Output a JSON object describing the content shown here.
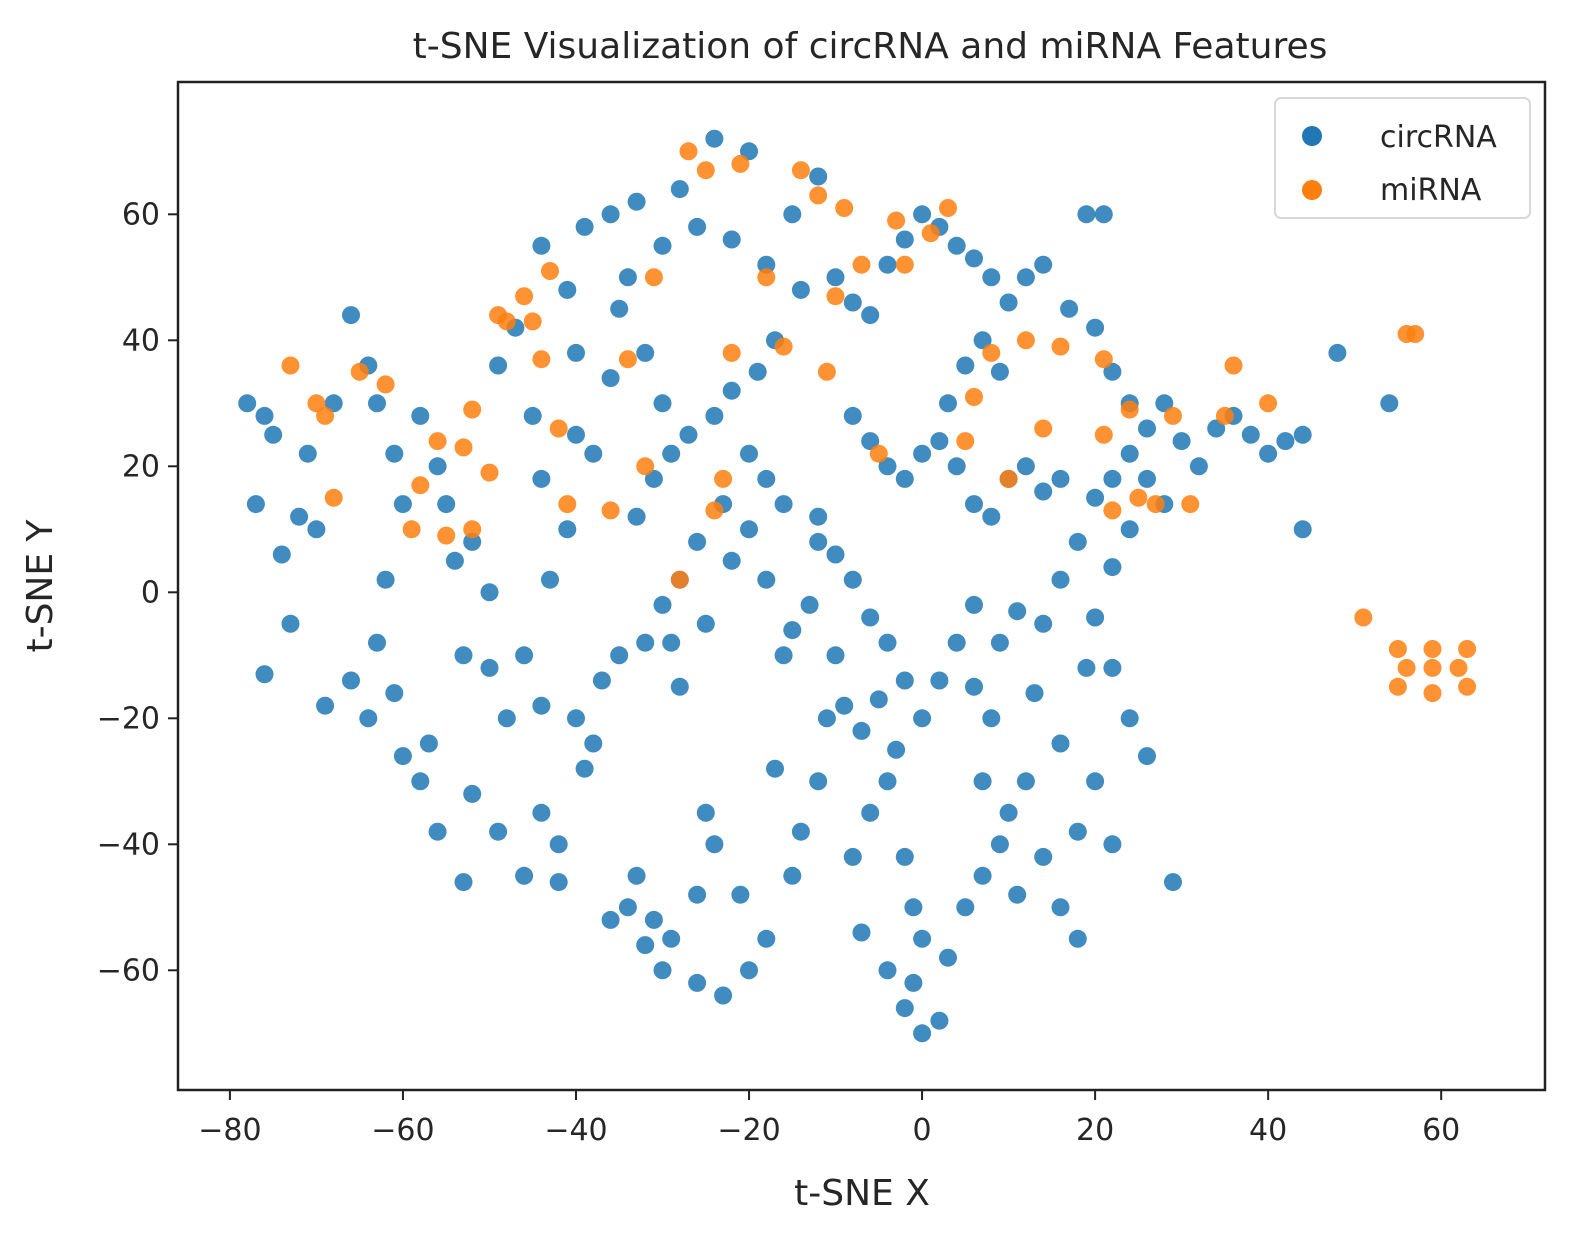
{
  "chart_data": {
    "type": "scatter",
    "title": "t-SNE Visualization of circRNA and miRNA Features",
    "xlabel": "t-SNE X",
    "ylabel": "t-SNE Y",
    "xlim": [
      -86,
      72
    ],
    "ylim": [
      -79,
      81
    ],
    "xticks": [
      -80,
      -60,
      -40,
      -20,
      0,
      20,
      40,
      60
    ],
    "yticks": [
      -60,
      -40,
      -20,
      0,
      20,
      40,
      60
    ],
    "tick_labels_x": [
      "−80",
      "−60",
      "−40",
      "−20",
      "0",
      "20",
      "40",
      "60"
    ],
    "tick_labels_y": [
      "−60",
      "−40",
      "−20",
      "0",
      "20",
      "40",
      "60"
    ],
    "legend_position": "top-right",
    "series": [
      {
        "name": "circRNA",
        "color": "#1f77b4",
        "points": [
          [
            -78,
            30
          ],
          [
            -76,
            28
          ],
          [
            -75,
            25
          ],
          [
            -77,
            14
          ],
          [
            -72,
            12
          ],
          [
            -70,
            10
          ],
          [
            -74,
            6
          ],
          [
            -76,
            -13
          ],
          [
            -73,
            -5
          ],
          [
            -69,
            -18
          ],
          [
            -66,
            44
          ],
          [
            -64,
            36
          ],
          [
            -63,
            30
          ],
          [
            -61,
            22
          ],
          [
            -60,
            14
          ],
          [
            -62,
            2
          ],
          [
            -63,
            -8
          ],
          [
            -61,
            -16
          ],
          [
            -60,
            -26
          ],
          [
            -57,
            -24
          ],
          [
            -55,
            14
          ],
          [
            -54,
            5
          ],
          [
            -53,
            -10
          ],
          [
            -50,
            -12
          ],
          [
            -48,
            -20
          ],
          [
            -52,
            -32
          ],
          [
            -49,
            -38
          ],
          [
            -46,
            -45
          ],
          [
            -44,
            -35
          ],
          [
            -42,
            -40
          ],
          [
            -49,
            36
          ],
          [
            -47,
            42
          ],
          [
            -45,
            28
          ],
          [
            -44,
            18
          ],
          [
            -41,
            10
          ],
          [
            -40,
            25
          ],
          [
            -38,
            22
          ],
          [
            -43,
            2
          ],
          [
            -40,
            -20
          ],
          [
            -38,
            -24
          ],
          [
            -35,
            -10
          ],
          [
            -34,
            -50
          ],
          [
            -32,
            -56
          ],
          [
            -30,
            -60
          ],
          [
            -33,
            -45
          ],
          [
            -31,
            -52
          ],
          [
            -36,
            -52
          ],
          [
            -29,
            -55
          ],
          [
            -26,
            -62
          ],
          [
            -23,
            -64
          ],
          [
            -20,
            -60
          ],
          [
            -18,
            -55
          ],
          [
            -24,
            -40
          ],
          [
            -25,
            -35
          ],
          [
            -29,
            -8
          ],
          [
            -28,
            -15
          ],
          [
            -25,
            -5
          ],
          [
            -22,
            5
          ],
          [
            -20,
            10
          ],
          [
            -18,
            2
          ],
          [
            -15,
            -6
          ],
          [
            -13,
            -2
          ],
          [
            -12,
            8
          ],
          [
            -10,
            -10
          ],
          [
            -9,
            -18
          ],
          [
            -7,
            -22
          ],
          [
            -5,
            -17
          ],
          [
            -3,
            -25
          ],
          [
            -6,
            -35
          ],
          [
            -8,
            -42
          ],
          [
            -12,
            -30
          ],
          [
            -14,
            -38
          ],
          [
            -17,
            -28
          ],
          [
            -15,
            -45
          ],
          [
            -4,
            -30
          ],
          [
            -2,
            -42
          ],
          [
            -1,
            -50
          ],
          [
            0,
            -55
          ],
          [
            -2,
            -66
          ],
          [
            0,
            -70
          ],
          [
            2,
            -68
          ],
          [
            -1,
            -62
          ],
          [
            3,
            -58
          ],
          [
            5,
            -50
          ],
          [
            7,
            -45
          ],
          [
            9,
            -40
          ],
          [
            10,
            -35
          ],
          [
            12,
            -30
          ],
          [
            14,
            -42
          ],
          [
            16,
            -50
          ],
          [
            18,
            -55
          ],
          [
            11,
            -48
          ],
          [
            8,
            -20
          ],
          [
            6,
            -15
          ],
          [
            9,
            -8
          ],
          [
            11,
            -3
          ],
          [
            14,
            -5
          ],
          [
            16,
            2
          ],
          [
            18,
            8
          ],
          [
            20,
            15
          ],
          [
            22,
            18
          ],
          [
            24,
            22
          ],
          [
            26,
            26
          ],
          [
            28,
            30
          ],
          [
            30,
            24
          ],
          [
            32,
            20
          ],
          [
            34,
            26
          ],
          [
            36,
            28
          ],
          [
            38,
            25
          ],
          [
            40,
            22
          ],
          [
            42,
            24
          ],
          [
            44,
            10
          ],
          [
            44,
            25
          ],
          [
            29,
            -46
          ],
          [
            48,
            38
          ],
          [
            54,
            30
          ],
          [
            -33,
            62
          ],
          [
            -28,
            64
          ],
          [
            -24,
            72
          ],
          [
            -20,
            70
          ],
          [
            -26,
            58
          ],
          [
            -30,
            55
          ],
          [
            -34,
            50
          ],
          [
            -35,
            45
          ],
          [
            -22,
            56
          ],
          [
            -18,
            52
          ],
          [
            -14,
            48
          ],
          [
            -10,
            50
          ],
          [
            -8,
            46
          ],
          [
            -6,
            44
          ],
          [
            -4,
            52
          ],
          [
            -2,
            56
          ],
          [
            0,
            60
          ],
          [
            2,
            58
          ],
          [
            4,
            55
          ],
          [
            6,
            53
          ],
          [
            8,
            50
          ],
          [
            10,
            46
          ],
          [
            12,
            50
          ],
          [
            14,
            52
          ],
          [
            -12,
            66
          ],
          [
            -15,
            60
          ],
          [
            -17,
            40
          ],
          [
            -19,
            35
          ],
          [
            -22,
            32
          ],
          [
            -24,
            28
          ],
          [
            -27,
            25
          ],
          [
            -29,
            22
          ],
          [
            -31,
            18
          ],
          [
            -33,
            12
          ],
          [
            -8,
            28
          ],
          [
            -6,
            24
          ],
          [
            -4,
            20
          ],
          [
            -2,
            18
          ],
          [
            0,
            22
          ],
          [
            2,
            24
          ],
          [
            4,
            20
          ],
          [
            6,
            14
          ],
          [
            8,
            12
          ],
          [
            10,
            18
          ],
          [
            12,
            20
          ],
          [
            14,
            16
          ],
          [
            16,
            18
          ],
          [
            19,
            60
          ],
          [
            21,
            60
          ],
          [
            17,
            45
          ],
          [
            20,
            42
          ],
          [
            22,
            35
          ],
          [
            24,
            30
          ],
          [
            26,
            18
          ],
          [
            28,
            14
          ],
          [
            24,
            10
          ],
          [
            22,
            4
          ],
          [
            20,
            -4
          ],
          [
            22,
            -12
          ],
          [
            24,
            -20
          ],
          [
            26,
            -26
          ],
          [
            20,
            -30
          ],
          [
            18,
            -38
          ],
          [
            22,
            -40
          ],
          [
            6,
            -2
          ],
          [
            4,
            -8
          ],
          [
            2,
            -14
          ],
          [
            0,
            -20
          ],
          [
            -2,
            -14
          ],
          [
            -4,
            -8
          ],
          [
            -6,
            -4
          ],
          [
            -8,
            2
          ],
          [
            -10,
            6
          ],
          [
            -12,
            12
          ],
          [
            -16,
            14
          ],
          [
            -18,
            18
          ],
          [
            -20,
            22
          ],
          [
            -23,
            14
          ],
          [
            -26,
            8
          ],
          [
            -28,
            2
          ],
          [
            -30,
            -2
          ],
          [
            -32,
            -8
          ],
          [
            -37,
            -14
          ],
          [
            -39,
            -28
          ],
          [
            -42,
            -46
          ],
          [
            -44,
            -18
          ],
          [
            -46,
            -10
          ],
          [
            -50,
            0
          ],
          [
            -52,
            8
          ],
          [
            -56,
            20
          ],
          [
            -58,
            28
          ],
          [
            -68,
            30
          ],
          [
            -71,
            22
          ],
          [
            -66,
            -14
          ],
          [
            -64,
            -20
          ],
          [
            -58,
            -30
          ],
          [
            -56,
            -38
          ],
          [
            -53,
            -46
          ],
          [
            -26,
            -48
          ],
          [
            -21,
            -48
          ],
          [
            -16,
            -10
          ],
          [
            -11,
            -20
          ],
          [
            -7,
            -54
          ],
          [
            -4,
            -60
          ],
          [
            7,
            -30
          ],
          [
            13,
            -16
          ],
          [
            16,
            -24
          ],
          [
            19,
            -12
          ],
          [
            3,
            30
          ],
          [
            5,
            36
          ],
          [
            7,
            40
          ],
          [
            9,
            35
          ],
          [
            -30,
            30
          ],
          [
            -32,
            38
          ],
          [
            -36,
            60
          ],
          [
            -39,
            58
          ],
          [
            -44,
            55
          ],
          [
            -41,
            48
          ],
          [
            -36,
            34
          ],
          [
            -40,
            38
          ]
        ]
      },
      {
        "name": "miRNA",
        "color": "#ff7f0e",
        "points": [
          [
            -73,
            36
          ],
          [
            -70,
            30
          ],
          [
            -69,
            28
          ],
          [
            -68,
            15
          ],
          [
            -65,
            35
          ],
          [
            -62,
            33
          ],
          [
            -59,
            10
          ],
          [
            -58,
            17
          ],
          [
            -56,
            24
          ],
          [
            -55,
            9
          ],
          [
            -53,
            23
          ],
          [
            -52,
            10
          ],
          [
            -52,
            29
          ],
          [
            -50,
            19
          ],
          [
            -49,
            44
          ],
          [
            -48,
            43
          ],
          [
            -46,
            47
          ],
          [
            -45,
            43
          ],
          [
            -44,
            37
          ],
          [
            -43,
            51
          ],
          [
            -42,
            26
          ],
          [
            -41,
            14
          ],
          [
            -36,
            13
          ],
          [
            -34,
            37
          ],
          [
            -32,
            20
          ],
          [
            -31,
            50
          ],
          [
            -28,
            2
          ],
          [
            -27,
            70
          ],
          [
            -25,
            67
          ],
          [
            -24,
            13
          ],
          [
            -23,
            18
          ],
          [
            -22,
            38
          ],
          [
            -21,
            68
          ],
          [
            -18,
            50
          ],
          [
            -16,
            39
          ],
          [
            -14,
            67
          ],
          [
            -12,
            63
          ],
          [
            -11,
            35
          ],
          [
            -10,
            47
          ],
          [
            -9,
            61
          ],
          [
            -7,
            52
          ],
          [
            -5,
            22
          ],
          [
            -3,
            59
          ],
          [
            -2,
            52
          ],
          [
            1,
            57
          ],
          [
            3,
            61
          ],
          [
            5,
            24
          ],
          [
            6,
            31
          ],
          [
            8,
            38
          ],
          [
            10,
            18
          ],
          [
            12,
            40
          ],
          [
            14,
            26
          ],
          [
            16,
            39
          ],
          [
            21,
            37
          ],
          [
            21,
            25
          ],
          [
            22,
            13
          ],
          [
            24,
            29
          ],
          [
            25,
            15
          ],
          [
            27,
            14
          ],
          [
            29,
            28
          ],
          [
            31,
            14
          ],
          [
            35,
            28
          ],
          [
            36,
            36
          ],
          [
            40,
            30
          ],
          [
            51,
            -4
          ],
          [
            56,
            41
          ],
          [
            57,
            41
          ],
          [
            59,
            -12
          ],
          [
            59,
            -9
          ],
          [
            59,
            -16
          ],
          [
            56,
            -12
          ],
          [
            62,
            -12
          ],
          [
            55,
            -9
          ],
          [
            63,
            -9
          ],
          [
            55,
            -15
          ],
          [
            63,
            -15
          ]
        ]
      }
    ]
  }
}
